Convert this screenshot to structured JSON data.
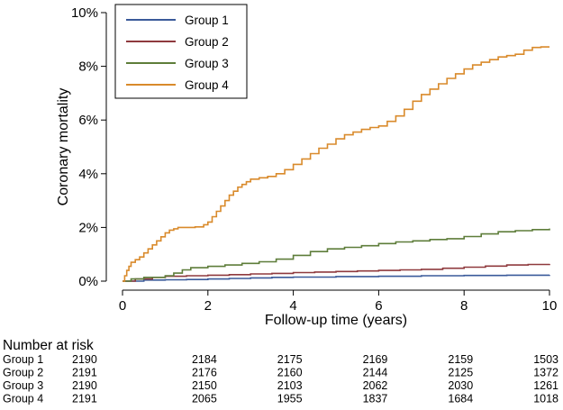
{
  "chart_data": {
    "type": "line",
    "style": "step",
    "xlabel": "Follow-up time (years)",
    "ylabel": "Coronary mortality",
    "xlim": [
      0,
      10
    ],
    "ylim": [
      0,
      10
    ],
    "x_ticks": [
      0,
      2,
      4,
      6,
      8,
      10
    ],
    "x_tick_labels": [
      "0",
      "2",
      "4",
      "6",
      "8",
      "10"
    ],
    "y_ticks": [
      0,
      2,
      4,
      6,
      8,
      10
    ],
    "y_tick_labels": [
      "0%",
      "2%",
      "4%",
      "6%",
      "8%",
      "10%"
    ],
    "grid": false,
    "legend_position": "top-left",
    "series": [
      {
        "name": "Group 1",
        "color": "#3a5a9a",
        "x": [
          0,
          0.5,
          1,
          1.5,
          2,
          2.5,
          3,
          3.5,
          4,
          5,
          6,
          7,
          8,
          9,
          10
        ],
        "y": [
          0,
          0.04,
          0.05,
          0.06,
          0.08,
          0.1,
          0.12,
          0.14,
          0.15,
          0.17,
          0.18,
          0.2,
          0.21,
          0.22,
          0.23
        ]
      },
      {
        "name": "Group 2",
        "color": "#8f3a3e",
        "x": [
          0,
          0.3,
          0.7,
          1,
          1.5,
          2,
          2.5,
          3,
          3.5,
          4,
          4.5,
          5,
          5.5,
          6,
          6.5,
          7,
          7.5,
          8,
          8.5,
          9,
          9.5,
          10
        ],
        "y": [
          0,
          0.08,
          0.14,
          0.18,
          0.2,
          0.22,
          0.24,
          0.27,
          0.29,
          0.32,
          0.34,
          0.36,
          0.38,
          0.4,
          0.42,
          0.44,
          0.48,
          0.52,
          0.56,
          0.6,
          0.62,
          0.64
        ]
      },
      {
        "name": "Group 3",
        "color": "#5e7d3a",
        "x": [
          0,
          0.2,
          0.5,
          1,
          1.2,
          1.4,
          1.6,
          2,
          2.4,
          2.8,
          3.2,
          3.6,
          4,
          4.4,
          4.8,
          5.2,
          5.6,
          6,
          6.4,
          6.8,
          7.2,
          7.6,
          8,
          8.4,
          8.8,
          9.2,
          9.6,
          10
        ],
        "y": [
          0,
          0.08,
          0.14,
          0.2,
          0.3,
          0.42,
          0.5,
          0.55,
          0.6,
          0.66,
          0.72,
          0.82,
          0.96,
          1.1,
          1.2,
          1.26,
          1.32,
          1.4,
          1.46,
          1.5,
          1.55,
          1.58,
          1.66,
          1.76,
          1.84,
          1.88,
          1.92,
          1.96
        ]
      },
      {
        "name": "Group 4",
        "color": "#d98a2b",
        "x": [
          0,
          0.05,
          0.1,
          0.15,
          0.2,
          0.3,
          0.4,
          0.5,
          0.6,
          0.7,
          0.8,
          0.9,
          1,
          1.1,
          1.2,
          1.3,
          1.5,
          1.7,
          1.9,
          2,
          2.1,
          2.2,
          2.3,
          2.4,
          2.5,
          2.6,
          2.7,
          2.8,
          2.9,
          3,
          3.2,
          3.4,
          3.6,
          3.8,
          4,
          4.2,
          4.4,
          4.6,
          4.8,
          5,
          5.2,
          5.4,
          5.6,
          5.8,
          6,
          6.2,
          6.4,
          6.6,
          6.8,
          7,
          7.2,
          7.4,
          7.6,
          7.8,
          8,
          8.2,
          8.4,
          8.6,
          8.8,
          9,
          9.2,
          9.4,
          9.6,
          9.8,
          10
        ],
        "y": [
          0,
          0.2,
          0.4,
          0.55,
          0.7,
          0.8,
          0.9,
          1.05,
          1.2,
          1.35,
          1.5,
          1.65,
          1.8,
          1.9,
          1.95,
          2.0,
          2.0,
          2.02,
          2.1,
          2.2,
          2.4,
          2.6,
          2.8,
          3.0,
          3.2,
          3.35,
          3.5,
          3.6,
          3.7,
          3.8,
          3.85,
          3.9,
          4.0,
          4.15,
          4.35,
          4.55,
          4.75,
          4.95,
          5.1,
          5.3,
          5.45,
          5.55,
          5.65,
          5.72,
          5.78,
          5.95,
          6.15,
          6.4,
          6.7,
          6.95,
          7.15,
          7.35,
          7.55,
          7.72,
          7.9,
          8.05,
          8.15,
          8.25,
          8.35,
          8.4,
          8.45,
          8.6,
          8.7,
          8.72,
          8.72
        ]
      }
    ],
    "risk_table": {
      "title": "Number at risk",
      "times": [
        0,
        2,
        4,
        6,
        8,
        10
      ],
      "rows": [
        {
          "label": "Group 1",
          "values": [
            "2190",
            "2184",
            "2175",
            "2169",
            "2159",
            "1503"
          ]
        },
        {
          "label": "Group 2",
          "values": [
            "2191",
            "2176",
            "2160",
            "2144",
            "2125",
            "1372"
          ]
        },
        {
          "label": "Group 3",
          "values": [
            "2190",
            "2150",
            "2103",
            "2062",
            "2030",
            "1261"
          ]
        },
        {
          "label": "Group 4",
          "values": [
            "2191",
            "2065",
            "1955",
            "1837",
            "1684",
            "1018"
          ]
        }
      ]
    }
  }
}
